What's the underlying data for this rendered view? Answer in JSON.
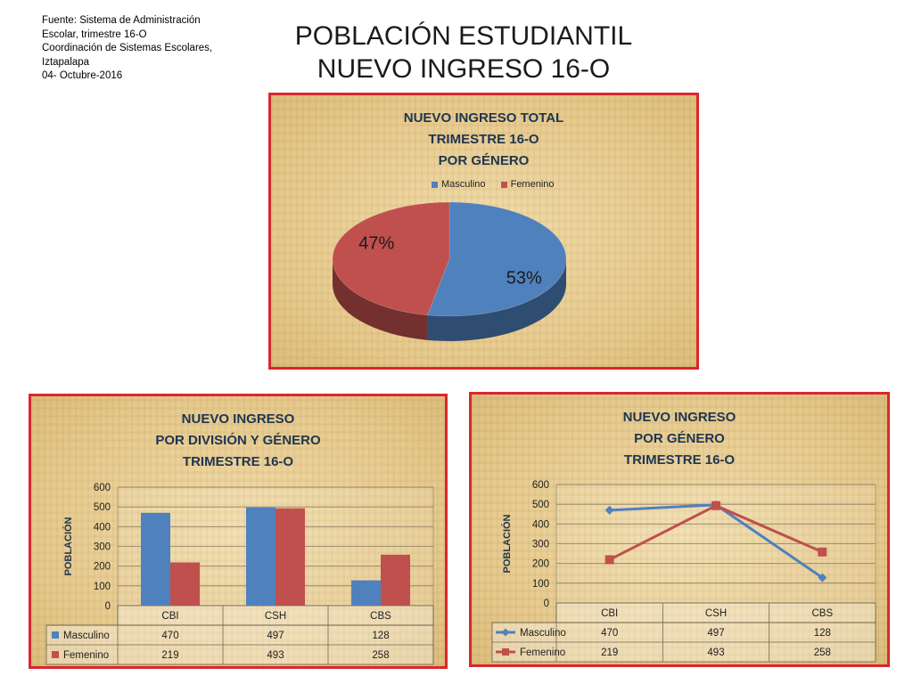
{
  "source": {
    "lines": [
      "Fuente: Sistema de Administración",
      "Escolar, trimestre 16-O",
      "Coordinación de Sistemas Escolares,",
      "Iztapalapa",
      "04- Octubre-2016"
    ]
  },
  "title": {
    "line1": "POBLACIÓN ESTUDIANTIL",
    "line2": "NUEVO INGRESO 16-O"
  },
  "colors": {
    "masculino": "#4f81bd",
    "femenino": "#c0504d",
    "border": "#d9272e",
    "title": "#1f3550"
  },
  "chart_data": [
    {
      "type": "pie",
      "title_lines": [
        "NUEVO INGRESO TOTAL",
        "TRIMESTRE 16-O",
        "POR GÉNERO"
      ],
      "legend_placement": "top",
      "labels": [
        "Masculino",
        "Femenino"
      ],
      "values": [
        53,
        47
      ],
      "value_labels": [
        "53%",
        "47%"
      ]
    },
    {
      "type": "bar",
      "title_lines": [
        "NUEVO INGRESO",
        "POR DIVISIÓN Y GÉNERO",
        "TRIMESTRE 16-O"
      ],
      "ylabel": "POBLACIÓN",
      "categories": [
        "CBI",
        "CSH",
        "CBS"
      ],
      "series": [
        {
          "name": "Masculino",
          "values": [
            470,
            497,
            128
          ]
        },
        {
          "name": "Femenino",
          "values": [
            219,
            493,
            258
          ]
        }
      ],
      "ylim": [
        0,
        600
      ],
      "yticks": [
        "0",
        "100",
        "200",
        "300",
        "400",
        "500",
        "600"
      ],
      "grid": true,
      "data_table": true
    },
    {
      "type": "line",
      "title_lines": [
        "NUEVO INGRESO",
        "POR GÉNERO",
        "TRIMESTRE 16-O"
      ],
      "ylabel": "POBLACIÓN",
      "categories": [
        "CBI",
        "CSH",
        "CBS"
      ],
      "series": [
        {
          "name": "Masculino",
          "values": [
            470,
            497,
            128
          ]
        },
        {
          "name": "Femenino",
          "values": [
            219,
            493,
            258
          ]
        }
      ],
      "ylim": [
        0,
        600
      ],
      "yticks": [
        "0",
        "100",
        "200",
        "300",
        "400",
        "500",
        "600"
      ],
      "grid": true,
      "data_table": true
    }
  ]
}
